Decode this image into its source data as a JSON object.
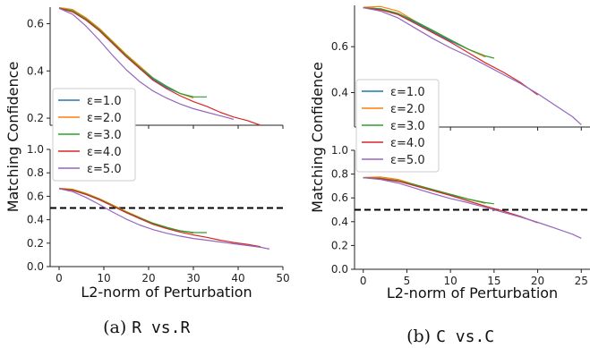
{
  "chart_data": [
    {
      "type": "line",
      "panel": "(a)",
      "ylabel": "Matching Confidence",
      "xlabel": "L2-norm of Perturbation",
      "xlim": [
        -2,
        50
      ],
      "xticks": [
        0,
        10,
        20,
        30,
        40,
        50
      ],
      "top": {
        "ylim": [
          0.17,
          0.67
        ],
        "yticks": [
          0.2,
          0.4,
          0.6
        ],
        "legend_loc": "lower-left",
        "series": [
          {
            "name": "ε=1.0",
            "color": "#1f77b4",
            "x": [
              0,
              3,
              6,
              9,
              12,
              15,
              18,
              21,
              24,
              27,
              30
            ],
            "y": [
              0.665,
              0.655,
              0.62,
              0.575,
              0.52,
              0.465,
              0.41,
              0.365,
              0.33,
              0.305,
              0.29
            ]
          },
          {
            "name": "ε=2.0",
            "color": "#ff7f0e",
            "x": [
              0,
              3,
              6,
              9,
              12,
              15,
              18,
              21,
              24,
              27,
              30
            ],
            "y": [
              0.668,
              0.66,
              0.625,
              0.58,
              0.525,
              0.47,
              0.42,
              0.37,
              0.335,
              0.305,
              0.285
            ]
          },
          {
            "name": "ε=3.0",
            "color": "#2ca02c",
            "x": [
              0,
              3,
              6,
              9,
              12,
              15,
              18,
              21,
              24,
              27,
              30,
              33
            ],
            "y": [
              0.666,
              0.655,
              0.62,
              0.575,
              0.52,
              0.465,
              0.415,
              0.37,
              0.335,
              0.305,
              0.29,
              0.29
            ]
          },
          {
            "name": "ε=4.0",
            "color": "#d62728",
            "x": [
              0,
              3,
              6,
              9,
              12,
              15,
              18,
              21,
              24,
              27,
              30,
              33,
              36,
              39,
              42,
              45
            ],
            "y": [
              0.665,
              0.65,
              0.615,
              0.57,
              0.515,
              0.46,
              0.41,
              0.36,
              0.325,
              0.295,
              0.27,
              0.25,
              0.225,
              0.205,
              0.19,
              0.17
            ]
          },
          {
            "name": "ε=5.0",
            "color": "#9467bd",
            "x": [
              0,
              3,
              6,
              9,
              12,
              15,
              18,
              21,
              24,
              27,
              30,
              33,
              36,
              39
            ],
            "y": [
              0.665,
              0.64,
              0.59,
              0.53,
              0.465,
              0.405,
              0.355,
              0.315,
              0.285,
              0.26,
              0.24,
              0.225,
              0.21,
              0.195
            ]
          }
        ]
      },
      "bottom": {
        "ylim": [
          0.0,
          1.0
        ],
        "yticks": [
          0.0,
          0.2,
          0.4,
          0.6,
          0.8,
          1.0
        ],
        "threshold": 0.5,
        "series": [
          {
            "name": "ε=1.0",
            "color": "#1f77b4",
            "x": [
              0,
              3,
              6,
              9,
              12,
              15,
              18,
              21,
              24,
              27,
              30
            ],
            "y": [
              0.665,
              0.655,
              0.62,
              0.575,
              0.52,
              0.465,
              0.41,
              0.365,
              0.33,
              0.305,
              0.29
            ]
          },
          {
            "name": "ε=2.0",
            "color": "#ff7f0e",
            "x": [
              0,
              3,
              6,
              9,
              12,
              15,
              18,
              21,
              24,
              27,
              30
            ],
            "y": [
              0.668,
              0.66,
              0.625,
              0.58,
              0.525,
              0.47,
              0.42,
              0.37,
              0.335,
              0.305,
              0.285
            ]
          },
          {
            "name": "ε=3.0",
            "color": "#2ca02c",
            "x": [
              0,
              3,
              6,
              9,
              12,
              15,
              18,
              21,
              24,
              27,
              30,
              33
            ],
            "y": [
              0.666,
              0.655,
              0.62,
              0.575,
              0.52,
              0.465,
              0.415,
              0.37,
              0.335,
              0.305,
              0.29,
              0.29
            ]
          },
          {
            "name": "ε=4.0",
            "color": "#d62728",
            "x": [
              0,
              3,
              6,
              9,
              12,
              15,
              18,
              21,
              24,
              27,
              30,
              33,
              36,
              39,
              42,
              45
            ],
            "y": [
              0.665,
              0.65,
              0.615,
              0.57,
              0.515,
              0.46,
              0.41,
              0.36,
              0.325,
              0.295,
              0.27,
              0.25,
              0.225,
              0.205,
              0.19,
              0.17
            ]
          },
          {
            "name": "ε=5.0",
            "color": "#9467bd",
            "x": [
              0,
              3,
              6,
              9,
              12,
              15,
              18,
              21,
              24,
              27,
              30,
              33,
              36,
              39,
              42,
              45,
              47
            ],
            "y": [
              0.665,
              0.64,
              0.59,
              0.53,
              0.465,
              0.405,
              0.355,
              0.315,
              0.285,
              0.26,
              0.24,
              0.225,
              0.21,
              0.195,
              0.18,
              0.165,
              0.15
            ]
          }
        ]
      }
    },
    {
      "type": "line",
      "panel": "(b)",
      "ylabel": "Matching Confidence",
      "xlabel": "L2-norm of Perturbation",
      "xlim": [
        -1,
        26
      ],
      "xticks": [
        0,
        5,
        10,
        15,
        20,
        25
      ],
      "top": {
        "ylim": [
          0.25,
          0.78
        ],
        "yticks": [
          0.4,
          0.6
        ],
        "legend_loc": "lower-left",
        "series": [
          {
            "name": "ε=1.0",
            "color": "#1f77b4",
            "x": [
              0,
              2,
              4,
              6,
              8,
              10,
              12,
              14
            ],
            "y": [
              0.77,
              0.765,
              0.74,
              0.705,
              0.665,
              0.625,
              0.59,
              0.555
            ]
          },
          {
            "name": "ε=2.0",
            "color": "#ff7f0e",
            "x": [
              0,
              2,
              4,
              6,
              8,
              10,
              12,
              14
            ],
            "y": [
              0.772,
              0.775,
              0.755,
              0.71,
              0.67,
              0.63,
              0.59,
              0.555
            ]
          },
          {
            "name": "ε=3.0",
            "color": "#2ca02c",
            "x": [
              0,
              2,
              4,
              6,
              8,
              10,
              12,
              14,
              15
            ],
            "y": [
              0.77,
              0.765,
              0.745,
              0.71,
              0.67,
              0.63,
              0.59,
              0.56,
              0.55
            ]
          },
          {
            "name": "ε=4.0",
            "color": "#d62728",
            "x": [
              0,
              2,
              4,
              6,
              8,
              10,
              12,
              14,
              16,
              18,
              20
            ],
            "y": [
              0.77,
              0.76,
              0.74,
              0.7,
              0.66,
              0.62,
              0.575,
              0.53,
              0.49,
              0.445,
              0.39
            ]
          },
          {
            "name": "ε=5.0",
            "color": "#9467bd",
            "x": [
              0,
              2,
              4,
              6,
              8,
              10,
              12,
              14,
              16,
              18,
              20,
              22,
              24,
              25
            ],
            "y": [
              0.77,
              0.755,
              0.725,
              0.68,
              0.635,
              0.595,
              0.56,
              0.52,
              0.48,
              0.44,
              0.395,
              0.345,
              0.295,
              0.26
            ]
          }
        ]
      },
      "bottom": {
        "ylim": [
          0.0,
          1.0
        ],
        "yticks": [
          0.0,
          0.2,
          0.4,
          0.6,
          0.8,
          1.0
        ],
        "threshold": 0.5,
        "series": [
          {
            "name": "ε=1.0",
            "color": "#1f77b4",
            "x": [
              0,
              2,
              4,
              6,
              8,
              10,
              12,
              14
            ],
            "y": [
              0.77,
              0.765,
              0.74,
              0.705,
              0.665,
              0.625,
              0.59,
              0.555
            ]
          },
          {
            "name": "ε=2.0",
            "color": "#ff7f0e",
            "x": [
              0,
              2,
              4,
              6,
              8,
              10,
              12,
              14
            ],
            "y": [
              0.772,
              0.775,
              0.755,
              0.71,
              0.67,
              0.63,
              0.59,
              0.555
            ]
          },
          {
            "name": "ε=3.0",
            "color": "#2ca02c",
            "x": [
              0,
              2,
              4,
              6,
              8,
              10,
              12,
              14,
              15
            ],
            "y": [
              0.77,
              0.765,
              0.745,
              0.71,
              0.67,
              0.63,
              0.59,
              0.56,
              0.55
            ]
          },
          {
            "name": "ε=4.0",
            "color": "#d62728",
            "x": [
              0,
              2,
              4,
              6,
              8,
              10,
              12,
              14,
              16,
              18,
              20
            ],
            "y": [
              0.77,
              0.76,
              0.74,
              0.7,
              0.66,
              0.62,
              0.575,
              0.53,
              0.49,
              0.445,
              0.39
            ]
          },
          {
            "name": "ε=5.0",
            "color": "#9467bd",
            "x": [
              0,
              2,
              4,
              6,
              8,
              10,
              12,
              14,
              16,
              18,
              20,
              22,
              24,
              25
            ],
            "y": [
              0.77,
              0.755,
              0.725,
              0.68,
              0.635,
              0.595,
              0.56,
              0.52,
              0.48,
              0.44,
              0.395,
              0.345,
              0.295,
              0.26
            ]
          }
        ]
      }
    }
  ],
  "captions": [
    {
      "prefix": "(a) ",
      "mono": "R vs.R"
    },
    {
      "prefix": "(b) ",
      "mono": "C vs.C"
    }
  ]
}
